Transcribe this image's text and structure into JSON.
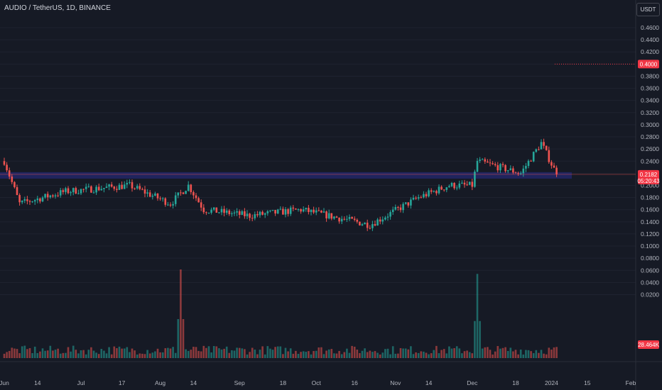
{
  "header": {
    "title": "AUDIO / TetherUS, 1D, BINANCE",
    "unit": "USDT"
  },
  "price_scale": {
    "ticks": [
      "0.4600",
      "0.4400",
      "0.4200",
      "0.4000",
      "0.3800",
      "0.3600",
      "0.3400",
      "0.3200",
      "0.3000",
      "0.2800",
      "0.2600",
      "0.2400",
      "0.2200",
      "0.2000",
      "0.1800",
      "0.1600",
      "0.1400",
      "0.1200",
      "0.1000",
      "0.0800",
      "0.0600",
      "0.0400",
      "0.0200"
    ]
  },
  "time_scale": {
    "ticks": [
      "Jun",
      "14",
      "Jul",
      "17",
      "Aug",
      "14",
      "Sep",
      "18",
      "Oct",
      "16",
      "Nov",
      "14",
      "Dec",
      "18",
      "2024",
      "15",
      "Feb"
    ]
  },
  "labels": {
    "alert_price": "0.4000",
    "last_price": "0.2182",
    "countdown": "05:20:43",
    "volume_label": "28.464K"
  },
  "colors": {
    "background": "#161a25",
    "up": "#26a69a",
    "down": "#ef5350",
    "zone": "#2a2e8c",
    "grid": "#1f2330",
    "alert": "#f23645"
  },
  "chart_data": {
    "type": "candlestick",
    "symbol": "AUDIO / TetherUS",
    "interval": "1D",
    "exchange": "BINANCE",
    "ylim": [
      0.005,
      0.475
    ],
    "price_labels": [
      0.46,
      0.44,
      0.42,
      0.4,
      0.38,
      0.36,
      0.34,
      0.32,
      0.3,
      0.28,
      0.26,
      0.24,
      0.22,
      0.2,
      0.18,
      0.16,
      0.14,
      0.12,
      0.1,
      0.08,
      0.06,
      0.04,
      0.02
    ],
    "support_zone": [
      0.2135,
      0.2195
    ],
    "alert_level": 0.4,
    "last_price": 0.2182,
    "key_points": [
      {
        "date": "2023-06-01",
        "price": 0.24
      },
      {
        "date": "2023-06-07",
        "price": 0.17
      },
      {
        "date": "2023-06-25",
        "price": 0.19
      },
      {
        "date": "2023-07-20",
        "price": 0.2
      },
      {
        "date": "2023-08-05",
        "price": 0.17
      },
      {
        "date": "2023-08-12",
        "price": 0.2
      },
      {
        "date": "2023-08-18",
        "price": 0.16
      },
      {
        "date": "2023-09-05",
        "price": 0.15
      },
      {
        "date": "2023-09-25",
        "price": 0.16
      },
      {
        "date": "2023-10-22",
        "price": 0.135
      },
      {
        "date": "2023-11-10",
        "price": 0.18
      },
      {
        "date": "2023-11-22",
        "price": 0.2
      },
      {
        "date": "2023-12-01",
        "price": 0.2
      },
      {
        "date": "2023-12-03",
        "price": 0.24
      },
      {
        "date": "2023-12-20",
        "price": 0.22
      },
      {
        "date": "2023-12-28",
        "price": 0.27
      },
      {
        "date": "2024-01-03",
        "price": 0.218
      }
    ],
    "volume_spikes": [
      {
        "date": "2023-08-09",
        "volume_ratio": 1.0
      },
      {
        "date": "2023-12-03",
        "volume_ratio": 0.95
      }
    ]
  }
}
